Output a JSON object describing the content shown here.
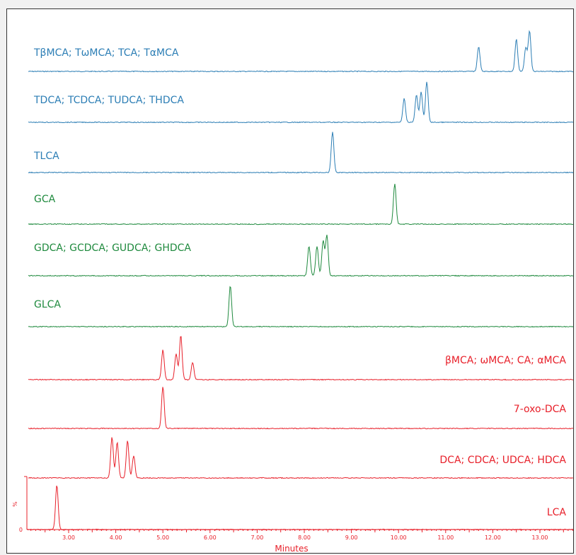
{
  "colors": {
    "blue": "#2c7eb5",
    "green": "#1f8a3e",
    "red": "#e8202a"
  },
  "chart_data": {
    "type": "line",
    "title": "",
    "xlabel": "Minutes",
    "ylabel": "%",
    "y_ticks": [
      "0"
    ],
    "xlim": [
      2.2,
      13.7
    ],
    "x_ticks": [
      "3.00",
      "4.00",
      "5.00",
      "6.00",
      "7.00",
      "8.00",
      "9.00",
      "10.00",
      "11.00",
      "12.00",
      "13.00"
    ],
    "series": [
      {
        "name": "TβMCA; TωMCA; TCA; TαMCA",
        "color": "blue",
        "peaks_minutes": [
          11.7,
          12.5,
          12.7,
          12.78
        ],
        "peak_heights": [
          0.5,
          0.65,
          0.48,
          0.82
        ]
      },
      {
        "name": "TDCA; TCDCA; TUDCA; THDCA",
        "color": "blue",
        "peaks_minutes": [
          10.12,
          10.38,
          10.48,
          10.6
        ],
        "peak_heights": [
          0.48,
          0.55,
          0.62,
          0.82
        ]
      },
      {
        "name": "TLCA",
        "color": "blue",
        "peaks_minutes": [
          8.6
        ],
        "peak_heights": [
          0.82
        ]
      },
      {
        "name": "GCA",
        "color": "green",
        "peaks_minutes": [
          9.92
        ],
        "peak_heights": [
          0.82
        ]
      },
      {
        "name": "GDCA; GCDCA; GUDCA; GHDCA",
        "color": "green",
        "peaks_minutes": [
          8.1,
          8.27,
          8.4,
          8.48
        ],
        "peak_heights": [
          0.6,
          0.6,
          0.7,
          0.82
        ]
      },
      {
        "name": "GLCA",
        "color": "green",
        "peaks_minutes": [
          6.43
        ],
        "peak_heights": [
          0.82
        ]
      },
      {
        "name": "βMCA; ωMCA; CA; αMCA",
        "color": "red",
        "peaks_minutes": [
          5.0,
          5.28,
          5.38,
          5.63
        ],
        "peak_heights": [
          0.6,
          0.52,
          0.9,
          0.35
        ]
      },
      {
        "name": "7-oxo-DCA",
        "color": "red",
        "peaks_minutes": [
          5.0
        ],
        "peak_heights": [
          0.85
        ]
      },
      {
        "name": "DCA; CDCA; UDCA; HDCA",
        "color": "red",
        "peaks_minutes": [
          3.92,
          4.03,
          4.25,
          4.38
        ],
        "peak_heights": [
          0.82,
          0.72,
          0.75,
          0.45
        ]
      },
      {
        "name": "LCA",
        "color": "red",
        "peaks_minutes": [
          2.75
        ],
        "peak_heights": [
          0.9
        ]
      }
    ]
  }
}
